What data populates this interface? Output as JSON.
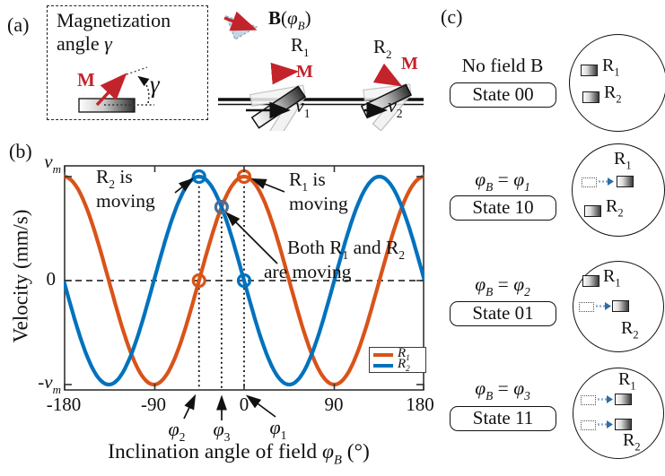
{
  "colors": {
    "r1_series": "#d95319",
    "r2_series": "#0072bd",
    "red": "#c3242b",
    "both_marker": "#4a6f94",
    "mini_arrow": "#7fa8cc",
    "mini_arrow_head": "#2e6da4",
    "field_icon_fill": "#c3d6e4",
    "field_icon_stroke": "#8aa5bc"
  },
  "panel_a": {
    "tag": "(a)",
    "title_line1": "Magnetization",
    "title_line2": [
      {
        "t": "angle "
      },
      {
        "t": "γ",
        "s": "i"
      }
    ],
    "m_label": "M",
    "gamma_label": [
      {
        "t": "γ",
        "s": "i"
      }
    ]
  },
  "top_diagram": {
    "b_label": [
      {
        "t": "B",
        "s": "b"
      },
      {
        "t": "("
      },
      {
        "t": "φ",
        "s": "i"
      },
      {
        "t": "B",
        "s": "sub-i"
      },
      {
        "t": ")"
      }
    ],
    "r1_label": [
      {
        "t": "R"
      },
      {
        "t": "1",
        "s": "sub"
      }
    ],
    "r2_label": [
      {
        "t": "R"
      },
      {
        "t": "2",
        "s": "sub"
      }
    ],
    "m1_label": "M",
    "m2_label": "M",
    "v1_label": [
      {
        "t": "v",
        "s": "i"
      },
      {
        "t": "1",
        "s": "sub"
      }
    ],
    "v2_label": [
      {
        "t": "v",
        "s": "i"
      },
      {
        "t": "2",
        "s": "sub"
      }
    ]
  },
  "chart": {
    "tag": "(b)",
    "ylabel": "Velocity (mm/s)",
    "y_ticks_rich": [
      [
        {
          "t": "v",
          "s": "i"
        },
        {
          "t": "m",
          "s": "sub-i"
        }
      ],
      [
        {
          "t": "0"
        }
      ],
      [
        {
          "t": "-"
        },
        {
          "t": "v",
          "s": "i"
        },
        {
          "t": "m",
          "s": "sub-i"
        }
      ]
    ],
    "x_tick_labels": [
      "-180",
      "-90",
      "0",
      "90",
      "180"
    ],
    "xlabel_rich": [
      {
        "t": "Inclination angle of field "
      },
      {
        "t": "φ",
        "s": "i"
      },
      {
        "t": "B",
        "s": "sub-i"
      },
      {
        "t": " (°)"
      }
    ],
    "phi_labels": [
      [
        {
          "t": "φ",
          "s": "i"
        },
        {
          "t": "2",
          "s": "sub"
        }
      ],
      [
        {
          "t": "φ",
          "s": "i"
        },
        {
          "t": "3",
          "s": "sub"
        }
      ],
      [
        {
          "t": "φ",
          "s": "i"
        },
        {
          "t": "1",
          "s": "sub"
        }
      ]
    ],
    "ann_r2": {
      "l1": [
        {
          "t": "R"
        },
        {
          "t": "2",
          "s": "sub"
        },
        {
          "t": " is"
        }
      ],
      "l2": [
        {
          "t": "moving"
        }
      ]
    },
    "ann_r1": {
      "l1": [
        {
          "t": "R"
        },
        {
          "t": "1",
          "s": "sub"
        },
        {
          "t": " is"
        }
      ],
      "l2": [
        {
          "t": "moving"
        }
      ]
    },
    "ann_both": {
      "l1": [
        {
          "t": "Both R"
        },
        {
          "t": "1",
          "s": "sub"
        },
        {
          "t": " and R"
        },
        {
          "t": "2",
          "s": "sub"
        }
      ],
      "l2": [
        {
          "t": "are moving"
        }
      ]
    },
    "legend_entries": [
      [
        {
          "t": "R",
          "s": "i"
        },
        {
          "t": "1",
          "s": "sub-i"
        }
      ],
      [
        {
          "t": "R",
          "s": "i"
        },
        {
          "t": "2",
          "s": "sub-i"
        }
      ]
    ]
  },
  "chart_data": {
    "type": "line",
    "xlabel": "Inclination angle of field phi_B (deg)",
    "ylabel": "Velocity (mm/s)",
    "xlim": [
      -180,
      180
    ],
    "x_ticks": [
      -180,
      -90,
      0,
      90,
      180
    ],
    "y_ticks": [
      "v_m",
      "0",
      "-v_m"
    ],
    "ylim_labels": [
      "-v_m",
      "v_m"
    ],
    "grid": false,
    "model": "v = v_m * cos(2*(phi_B - phi_peak)), period 180 deg",
    "series": [
      {
        "name": "R_1",
        "color": "#d95319",
        "peak_deg": 0,
        "peak_label": "phi_1",
        "amplitude": "v_m"
      },
      {
        "name": "R_2",
        "color": "#0072bd",
        "peak_deg": -45,
        "peak_label": "phi_2",
        "amplitude": "v_m"
      }
    ],
    "key_angles_deg": {
      "phi_2": -45,
      "phi_3": -22.5,
      "phi_1": 0
    },
    "markers": [
      {
        "x_deg": -45,
        "y_label": "v_m",
        "y_frac": 1,
        "series": "R_2",
        "meaning": "R_2 is moving"
      },
      {
        "x_deg": 0,
        "y_label": "v_m",
        "y_frac": 1,
        "series": "R_1",
        "meaning": "R_1 is moving"
      },
      {
        "x_deg": -22.5,
        "y_label": "0.71 v_m",
        "y_frac": 0.707,
        "series": "both",
        "meaning": "Both R_1 and R_2 are moving"
      },
      {
        "x_deg": -45,
        "y_label": "0",
        "y_frac": 0,
        "series": "R_1"
      },
      {
        "x_deg": 0,
        "y_label": "0",
        "y_frac": 0,
        "series": "R_2"
      }
    ],
    "legend": {
      "position": "lower right",
      "entries": [
        "R_1",
        "R_2"
      ]
    },
    "annotations": [
      "R_2 is moving",
      "R_1 is moving",
      "Both R_1 and R_2 are moving"
    ]
  },
  "panel_c": {
    "tag": "(c)",
    "r1_label": [
      {
        "t": "R"
      },
      {
        "t": "1",
        "s": "sub"
      }
    ],
    "r2_label": [
      {
        "t": "R"
      },
      {
        "t": "2",
        "s": "sub"
      }
    ],
    "states": [
      {
        "condition": [
          {
            "t": "No field B"
          }
        ],
        "state_label": "State 00",
        "r1_moving": false,
        "r2_moving": false
      },
      {
        "condition": [
          {
            "t": "φ",
            "s": "i"
          },
          {
            "t": "B",
            "s": "sub-i"
          },
          {
            "t": " = "
          },
          {
            "t": "φ",
            "s": "i"
          },
          {
            "t": "1",
            "s": "sub-i"
          }
        ],
        "state_label": "State 10",
        "r1_moving": true,
        "r2_moving": false
      },
      {
        "condition": [
          {
            "t": "φ",
            "s": "i"
          },
          {
            "t": "B",
            "s": "sub-i"
          },
          {
            "t": " = "
          },
          {
            "t": "φ",
            "s": "i"
          },
          {
            "t": "2",
            "s": "sub-i"
          }
        ],
        "state_label": "State 01",
        "r1_moving": false,
        "r2_moving": true
      },
      {
        "condition": [
          {
            "t": "φ",
            "s": "i"
          },
          {
            "t": "B",
            "s": "sub-i"
          },
          {
            "t": " = "
          },
          {
            "t": "φ",
            "s": "i"
          },
          {
            "t": "3",
            "s": "sub-i"
          }
        ],
        "state_label": "State 11",
        "r1_moving": true,
        "r2_moving": true
      }
    ]
  }
}
